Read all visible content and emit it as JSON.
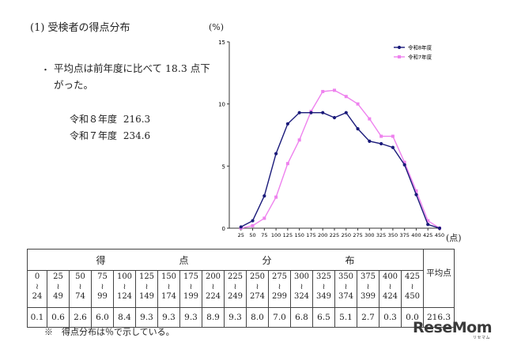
{
  "page": {
    "section_title": "(1) 受検者の得点分布",
    "bullet_marker": "・",
    "bullet_text": "平均点は前年度に比べて 18.3 点下がった。",
    "averages": [
      {
        "label": "令和８年度",
        "value": "216.3"
      },
      {
        "label": "令和７年度",
        "value": "234.6"
      }
    ],
    "footnote": "※　得点分布は％で示している。",
    "logo": "ReseMom",
    "logo_sub": "リセマム"
  },
  "colors": {
    "r8": "#1a1a7a",
    "r7": "#ee82ee"
  },
  "chart_data": {
    "type": "line",
    "y_unit_label": "(%)",
    "x_unit_label": "(点)",
    "x": [
      25,
      50,
      75,
      100,
      125,
      150,
      175,
      200,
      225,
      250,
      275,
      300,
      325,
      350,
      375,
      400,
      425,
      450
    ],
    "x_domain": [
      0,
      450
    ],
    "ylim": [
      0,
      15
    ],
    "yticks": [
      0,
      5,
      10,
      15
    ],
    "legend_position": "top-right",
    "series": [
      {
        "name": "令和8年度",
        "marker": "circle",
        "values": [
          0.1,
          0.6,
          2.6,
          6.0,
          8.4,
          9.3,
          9.3,
          9.3,
          8.9,
          9.3,
          8.0,
          7.0,
          6.8,
          6.5,
          5.1,
          2.7,
          0.3,
          0.0
        ]
      },
      {
        "name": "令和7年度",
        "marker": "square",
        "values": [
          0.0,
          0.2,
          0.8,
          2.5,
          5.2,
          7.1,
          9.4,
          11.0,
          11.1,
          10.6,
          10.0,
          8.8,
          7.4,
          7.4,
          5.3,
          3.0,
          0.6,
          0.0
        ]
      }
    ]
  },
  "table": {
    "header_chars": [
      "得",
      "点",
      "分",
      "布"
    ],
    "avg_header": "平均点",
    "ranges": [
      {
        "lo": "0",
        "hi": "24"
      },
      {
        "lo": "25",
        "hi": "49"
      },
      {
        "lo": "50",
        "hi": "74"
      },
      {
        "lo": "75",
        "hi": "99"
      },
      {
        "lo": "100",
        "hi": "124"
      },
      {
        "lo": "125",
        "hi": "149"
      },
      {
        "lo": "150",
        "hi": "174"
      },
      {
        "lo": "175",
        "hi": "199"
      },
      {
        "lo": "200",
        "hi": "224"
      },
      {
        "lo": "225",
        "hi": "249"
      },
      {
        "lo": "250",
        "hi": "274"
      },
      {
        "lo": "275",
        "hi": "299"
      },
      {
        "lo": "300",
        "hi": "324"
      },
      {
        "lo": "325",
        "hi": "349"
      },
      {
        "lo": "350",
        "hi": "374"
      },
      {
        "lo": "375",
        "hi": "399"
      },
      {
        "lo": "400",
        "hi": "424"
      },
      {
        "lo": "425",
        "hi": "450"
      }
    ],
    "tilde": "≀",
    "values": [
      "0.1",
      "0.6",
      "2.6",
      "6.0",
      "8.4",
      "9.3",
      "9.3",
      "9.3",
      "8.9",
      "9.3",
      "8.0",
      "7.0",
      "6.8",
      "6.5",
      "5.1",
      "2.7",
      "0.3",
      "0.0"
    ],
    "avg_value": "216.3"
  }
}
